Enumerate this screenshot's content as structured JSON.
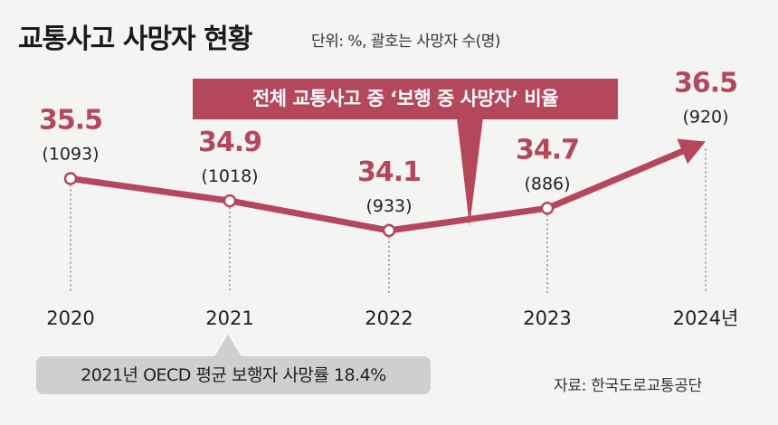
{
  "title": "교통사고 사망자 현황",
  "unit_note": "단위: %, 괄호는 사망자 수(명)",
  "callout": "전체 교통사고 중 ‘보행 중 사망자’ 비율",
  "footnote": "2021년 OECD 평균 보행자 사망률 18.4%",
  "source": "자료: 한국도로교통공단",
  "colors": {
    "accent": "#b5475c",
    "note_bg": "#cfcfcf",
    "background": "#f4f4f2"
  },
  "chart_data": {
    "type": "line",
    "categories": [
      "2020",
      "2021",
      "2022",
      "2023",
      "2024년"
    ],
    "values": [
      35.5,
      34.9,
      34.1,
      34.7,
      36.5
    ],
    "value_labels": [
      "35.5",
      "34.9",
      "34.1",
      "34.7",
      "36.5"
    ],
    "counts": [
      "(1093)",
      "(1018)",
      "(933)",
      "(886)",
      "(920)"
    ],
    "ylim": [
      33.0,
      37.0
    ],
    "grid": false,
    "legend": "none"
  }
}
